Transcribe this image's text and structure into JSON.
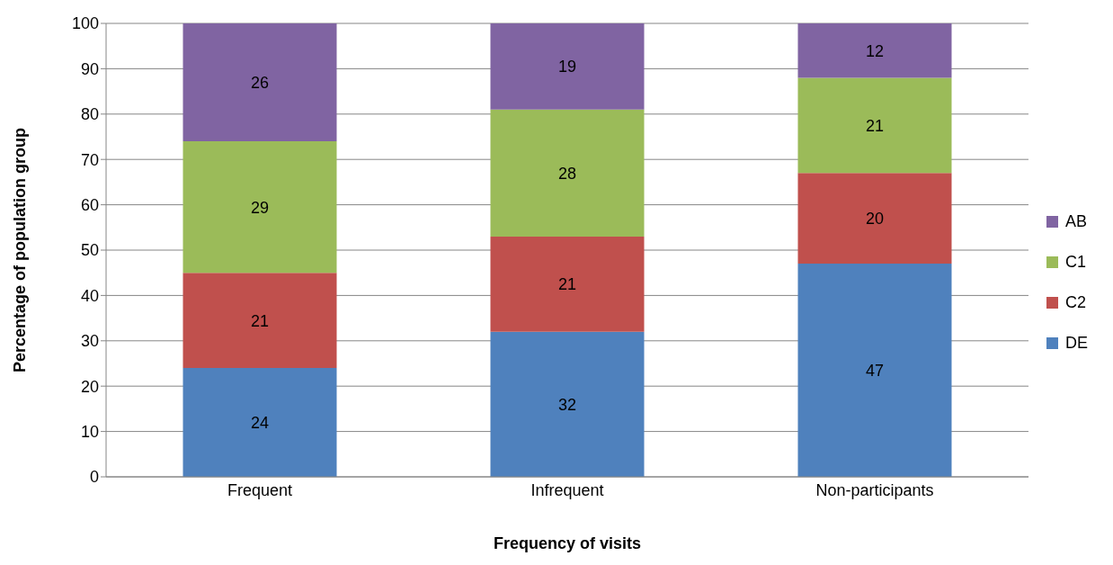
{
  "chart_data": {
    "type": "bar",
    "stacked": true,
    "xlabel": "Frequency of visits",
    "ylabel": "Percentage of population group",
    "categories": [
      "Frequent",
      "Infrequent",
      "Non-participants"
    ],
    "series": [
      {
        "name": "DE",
        "color": "#4f81bd",
        "values": [
          24,
          32,
          47
        ]
      },
      {
        "name": "C2",
        "color": "#c0504d",
        "values": [
          21,
          21,
          20
        ]
      },
      {
        "name": "C1",
        "color": "#9bbb59",
        "values": [
          29,
          28,
          21
        ]
      },
      {
        "name": "AB",
        "color": "#8064a2",
        "values": [
          26,
          19,
          12
        ]
      }
    ],
    "ylim": [
      0,
      100
    ],
    "yticks": [
      0,
      10,
      20,
      30,
      40,
      50,
      60,
      70,
      80,
      90,
      100
    ],
    "grid": "y",
    "legend": "right",
    "data_labels": true
  }
}
